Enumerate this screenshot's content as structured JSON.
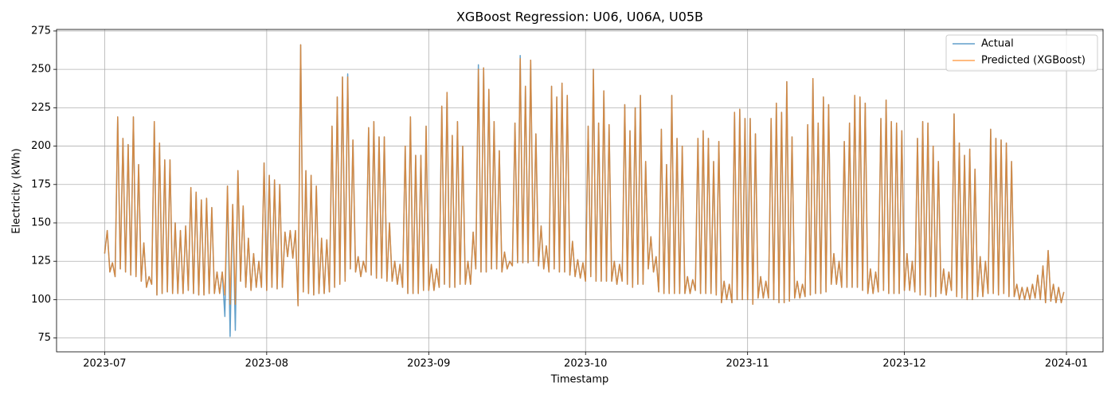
{
  "chart_data": {
    "type": "line",
    "title": "XGBoost Regression: U06, U06A, U05B",
    "xlabel": "Timestamp",
    "ylabel": "Electricity (kWh)",
    "grid": true,
    "legend": "upper right",
    "xlim": [
      -9.2,
      191
    ],
    "xticks": [
      {
        "value": 0,
        "label": "2023-07"
      },
      {
        "value": 31,
        "label": "2023-08"
      },
      {
        "value": 62,
        "label": "2023-09"
      },
      {
        "value": 92,
        "label": "2023-10"
      },
      {
        "value": 123,
        "label": "2023-11"
      },
      {
        "value": 153,
        "label": "2023-12"
      },
      {
        "value": 184,
        "label": "2024-01"
      }
    ],
    "ylim": [
      66,
      276
    ],
    "yticks": [
      75,
      100,
      125,
      150,
      175,
      200,
      225,
      250,
      275
    ],
    "x": [
      0,
      0.5,
      1,
      1.5,
      2,
      2.5,
      3,
      3.5,
      4,
      4.5,
      5,
      5.5,
      6,
      6.5,
      7,
      7.5,
      8,
      8.5,
      9,
      9.5,
      10,
      10.5,
      11,
      11.5,
      12,
      12.5,
      13,
      13.5,
      14,
      14.5,
      15,
      15.5,
      16,
      16.5,
      17,
      17.5,
      18,
      18.5,
      19,
      19.5,
      20,
      20.5,
      21,
      21.5,
      22,
      22.5,
      23,
      23.5,
      24,
      24.5,
      25,
      25.5,
      26,
      26.5,
      27,
      27.5,
      28,
      28.5,
      29,
      29.5,
      30,
      30.5,
      31,
      31.5,
      32,
      32.5,
      33,
      33.5,
      34,
      34.5,
      35,
      35.5,
      36,
      36.5,
      37,
      37.5,
      38,
      38.5,
      39,
      39.5,
      40,
      40.5,
      41,
      41.5,
      42,
      42.5,
      43,
      43.5,
      44,
      44.5,
      45,
      45.5,
      46,
      46.5,
      47,
      47.5,
      48,
      48.5,
      49,
      49.5,
      50,
      50.5,
      51,
      51.5,
      52,
      52.5,
      53,
      53.5,
      54,
      54.5,
      55,
      55.5,
      56,
      56.5,
      57,
      57.5,
      58,
      58.5,
      59,
      59.5,
      60,
      60.5,
      61,
      61.5,
      62,
      62.5,
      63,
      63.5,
      64,
      64.5,
      65,
      65.5,
      66,
      66.5,
      67,
      67.5,
      68,
      68.5,
      69,
      69.5,
      70,
      70.5,
      71,
      71.5,
      72,
      72.5,
      73,
      73.5,
      74,
      74.5,
      75,
      75.5,
      76,
      76.5,
      77,
      77.5,
      78,
      78.5,
      79,
      79.5,
      80,
      80.5,
      81,
      81.5,
      82,
      82.5,
      83,
      83.5,
      84,
      84.5,
      85,
      85.5,
      86,
      86.5,
      87,
      87.5,
      88,
      88.5,
      89,
      89.5,
      90,
      90.5,
      91,
      91.5,
      92,
      92.5,
      93,
      93.5,
      94,
      94.5,
      95,
      95.5,
      96,
      96.5,
      97,
      97.5,
      98,
      98.5,
      99,
      99.5,
      100,
      100.5,
      101,
      101.5,
      102,
      102.5,
      103,
      103.5,
      104,
      104.5,
      105,
      105.5,
      106,
      106.5,
      107,
      107.5,
      108,
      108.5,
      109,
      109.5,
      110,
      110.5,
      111,
      111.5,
      112,
      112.5,
      113,
      113.5,
      114,
      114.5,
      115,
      115.5,
      116,
      116.5,
      117,
      117.5,
      118,
      118.5,
      119,
      119.5,
      120,
      120.5,
      121,
      121.5,
      122,
      122.5,
      123,
      123.5,
      124,
      124.5,
      125,
      125.5,
      126,
      126.5,
      127,
      127.5,
      128,
      128.5,
      129,
      129.5,
      130,
      130.5,
      131,
      131.5,
      132,
      132.5,
      133,
      133.5,
      134,
      134.5,
      135,
      135.5,
      136,
      136.5,
      137,
      137.5,
      138,
      138.5,
      139,
      139.5,
      140,
      140.5,
      141,
      141.5,
      142,
      142.5,
      143,
      143.5,
      144,
      144.5,
      145,
      145.5,
      146,
      146.5,
      147,
      147.5,
      148,
      148.5,
      149,
      149.5,
      150,
      150.5,
      151,
      151.5,
      152,
      152.5,
      153,
      153.5,
      154,
      154.5,
      155,
      155.5,
      156,
      156.5,
      157,
      157.5,
      158,
      158.5,
      159,
      159.5,
      160,
      160.5,
      161,
      161.5,
      162,
      162.5,
      163,
      163.5,
      164,
      164.5,
      165,
      165.5,
      166,
      166.5,
      167,
      167.5,
      168,
      168.5,
      169,
      169.5,
      170,
      170.5,
      171,
      171.5,
      172,
      172.5,
      173,
      173.5,
      174,
      174.5,
      175,
      175.5,
      176,
      176.5,
      177,
      177.5,
      178,
      178.5,
      179,
      179.5,
      180,
      180.5,
      181,
      181.5,
      182,
      182.5,
      183,
      183.5
    ],
    "series": [
      {
        "name": "Actual",
        "color": "#1f77b4",
        "values": [
          130,
          145,
          118,
          124,
          115,
          219,
          120,
          205,
          118,
          201,
          116,
          219,
          115,
          188,
          112,
          137,
          108,
          115,
          110,
          216,
          103,
          202,
          104,
          191,
          105,
          191,
          104,
          150,
          104,
          145,
          104,
          148,
          106,
          173,
          104,
          170,
          103,
          165,
          103,
          166,
          104,
          160,
          104,
          118,
          104,
          118,
          89,
          174,
          76,
          162,
          80,
          184,
          112,
          161,
          108,
          140,
          106,
          130,
          108,
          125,
          108,
          189,
          106,
          181,
          108,
          178,
          107,
          175,
          108,
          144,
          128,
          145,
          127,
          145,
          96,
          266,
          105,
          184,
          104,
          181,
          103,
          174,
          104,
          140,
          104,
          139,
          105,
          213,
          108,
          232,
          110,
          245,
          112,
          247,
          120,
          204,
          118,
          128,
          115,
          125,
          118,
          212,
          116,
          216,
          114,
          206,
          114,
          206,
          112,
          150,
          112,
          125,
          110,
          123,
          108,
          200,
          104,
          219,
          104,
          194,
          104,
          194,
          106,
          213,
          106,
          123,
          106,
          120,
          108,
          226,
          110,
          235,
          108,
          207,
          108,
          216,
          110,
          200,
          110,
          125,
          110,
          144,
          120,
          253,
          118,
          251,
          118,
          237,
          120,
          216,
          120,
          197,
          118,
          131,
          120,
          125,
          122,
          215,
          124,
          259,
          124,
          239,
          124,
          256,
          125,
          208,
          122,
          148,
          120,
          135,
          118,
          239,
          120,
          232,
          118,
          241,
          118,
          233,
          116,
          138,
          115,
          126,
          114,
          124,
          112,
          213,
          115,
          250,
          112,
          215,
          112,
          236,
          112,
          214,
          112,
          125,
          110,
          123,
          112,
          227,
          110,
          210,
          108,
          225,
          110,
          233,
          110,
          190,
          120,
          141,
          118,
          128,
          105,
          211,
          104,
          188,
          104,
          233,
          104,
          205,
          104,
          200,
          104,
          115,
          104,
          113,
          106,
          205,
          104,
          210,
          104,
          205,
          104,
          190,
          103,
          203,
          98,
          112,
          100,
          110,
          98,
          222,
          100,
          224,
          100,
          218,
          100,
          218,
          97,
          208,
          101,
          115,
          101,
          112,
          101,
          218,
          100,
          228,
          98,
          222,
          98,
          242,
          99,
          206,
          101,
          112,
          101,
          110,
          102,
          214,
          103,
          244,
          104,
          215,
          104,
          232,
          105,
          227,
          110,
          130,
          110,
          125,
          108,
          203,
          108,
          215,
          108,
          233,
          108,
          232,
          106,
          228,
          104,
          120,
          104,
          118,
          105,
          218,
          106,
          230,
          104,
          216,
          104,
          215,
          104,
          210,
          106,
          130,
          106,
          125,
          105,
          205,
          103,
          216,
          103,
          215,
          102,
          200,
          102,
          190,
          104,
          120,
          103,
          118,
          106,
          221,
          102,
          202,
          101,
          194,
          100,
          198,
          100,
          185,
          102,
          128,
          102,
          125,
          104,
          211,
          104,
          205,
          103,
          204,
          104,
          202,
          102,
          190,
          102,
          110,
          100,
          108,
          100,
          108,
          100,
          110,
          101,
          116,
          100,
          122,
          98,
          132,
          99,
          110,
          98,
          108,
          98,
          105
        ]
      },
      {
        "name": "Predicted (XGBoost)",
        "color": "#ff7f0e",
        "values": [
          130,
          145,
          118,
          124,
          115,
          219,
          120,
          205,
          118,
          201,
          116,
          219,
          115,
          188,
          112,
          137,
          108,
          115,
          110,
          216,
          103,
          202,
          104,
          191,
          105,
          191,
          104,
          150,
          104,
          145,
          104,
          148,
          106,
          173,
          104,
          170,
          103,
          165,
          103,
          166,
          104,
          160,
          104,
          118,
          104,
          118,
          103,
          174,
          97,
          162,
          97,
          184,
          112,
          161,
          108,
          140,
          106,
          130,
          108,
          125,
          108,
          189,
          106,
          181,
          108,
          178,
          107,
          175,
          108,
          144,
          128,
          145,
          127,
          145,
          96,
          266,
          105,
          184,
          104,
          181,
          103,
          174,
          104,
          140,
          104,
          139,
          105,
          213,
          108,
          232,
          110,
          245,
          112,
          245,
          120,
          204,
          118,
          128,
          115,
          125,
          118,
          212,
          116,
          216,
          114,
          206,
          114,
          206,
          112,
          150,
          112,
          125,
          110,
          123,
          108,
          200,
          104,
          219,
          104,
          194,
          104,
          194,
          106,
          213,
          106,
          123,
          106,
          120,
          108,
          226,
          110,
          235,
          108,
          207,
          108,
          216,
          110,
          200,
          110,
          125,
          110,
          144,
          120,
          250,
          118,
          251,
          118,
          237,
          120,
          216,
          120,
          197,
          118,
          131,
          120,
          125,
          122,
          215,
          124,
          257,
          124,
          239,
          124,
          256,
          125,
          208,
          122,
          148,
          120,
          135,
          118,
          239,
          120,
          232,
          118,
          241,
          118,
          233,
          116,
          138,
          115,
          126,
          114,
          124,
          112,
          213,
          115,
          250,
          112,
          215,
          112,
          236,
          112,
          214,
          112,
          125,
          110,
          123,
          112,
          227,
          110,
          210,
          108,
          225,
          110,
          233,
          110,
          190,
          120,
          141,
          118,
          128,
          105,
          211,
          104,
          188,
          104,
          233,
          104,
          205,
          104,
          200,
          104,
          115,
          104,
          113,
          106,
          205,
          104,
          210,
          104,
          205,
          104,
          190,
          103,
          203,
          98,
          112,
          100,
          110,
          98,
          222,
          100,
          224,
          100,
          218,
          100,
          218,
          97,
          208,
          101,
          115,
          101,
          112,
          101,
          218,
          100,
          228,
          98,
          222,
          98,
          242,
          99,
          206,
          101,
          112,
          101,
          110,
          102,
          214,
          103,
          244,
          104,
          215,
          104,
          232,
          105,
          227,
          110,
          130,
          110,
          125,
          108,
          203,
          108,
          215,
          108,
          233,
          108,
          232,
          106,
          228,
          104,
          120,
          104,
          118,
          105,
          218,
          106,
          230,
          104,
          216,
          104,
          215,
          104,
          210,
          106,
          130,
          106,
          125,
          105,
          205,
          103,
          216,
          103,
          215,
          102,
          200,
          102,
          190,
          104,
          120,
          103,
          118,
          106,
          221,
          102,
          202,
          101,
          194,
          100,
          198,
          100,
          185,
          102,
          128,
          102,
          125,
          104,
          211,
          104,
          205,
          103,
          204,
          104,
          202,
          102,
          190,
          102,
          110,
          100,
          108,
          100,
          108,
          100,
          110,
          101,
          116,
          100,
          122,
          98,
          132,
          99,
          110,
          98,
          108,
          98,
          105
        ]
      }
    ]
  }
}
